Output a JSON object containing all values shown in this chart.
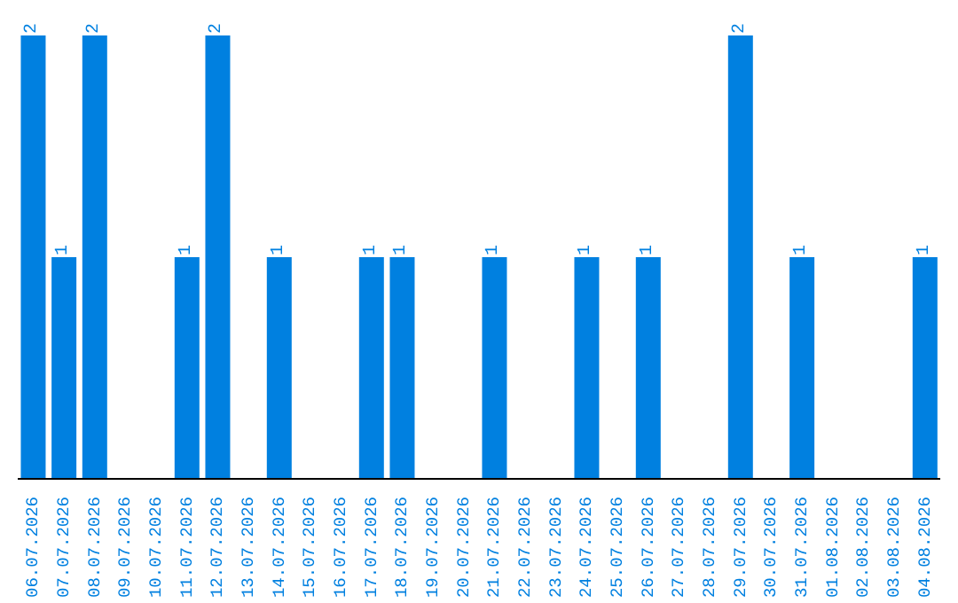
{
  "chart_data": {
    "type": "bar",
    "categories": [
      "06.07.2026",
      "07.07.2026",
      "08.07.2026",
      "09.07.2026",
      "10.07.2026",
      "11.07.2026",
      "12.07.2026",
      "13.07.2026",
      "14.07.2026",
      "15.07.2026",
      "16.07.2026",
      "17.07.2026",
      "18.07.2026",
      "19.07.2026",
      "20.07.2026",
      "21.07.2026",
      "22.07.2026",
      "23.07.2026",
      "24.07.2026",
      "25.07.2026",
      "26.07.2026",
      "27.07.2026",
      "28.07.2026",
      "29.07.2026",
      "30.07.2026",
      "31.07.2026",
      "01.08.2026",
      "02.08.2026",
      "03.08.2026",
      "04.08.2026"
    ],
    "values": [
      2,
      1,
      2,
      0,
      0,
      1,
      2,
      0,
      1,
      0,
      0,
      1,
      1,
      0,
      0,
      1,
      0,
      0,
      1,
      0,
      1,
      0,
      0,
      2,
      0,
      1,
      0,
      0,
      0,
      1
    ],
    "value_labels": [
      "2",
      "1",
      "2",
      null,
      null,
      "1",
      "2",
      null,
      "1",
      null,
      null,
      "1",
      "1",
      null,
      null,
      "1",
      null,
      null,
      "1",
      null,
      "1",
      null,
      null,
      "2",
      null,
      "1",
      null,
      null,
      null,
      "1"
    ],
    "color": "#0080e0",
    "tick_labels": "x",
    "grid": false,
    "legend": false
  }
}
